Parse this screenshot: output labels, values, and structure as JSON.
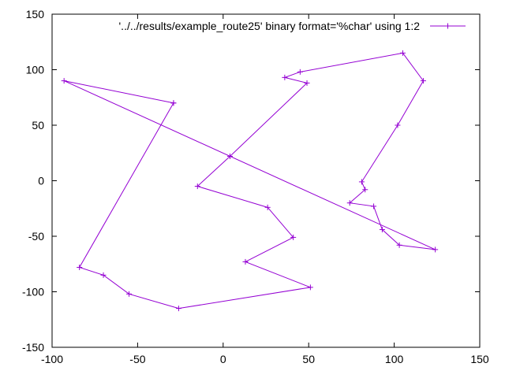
{
  "chart_data": {
    "type": "line",
    "title": "",
    "xlabel": "",
    "ylabel": "",
    "xlim": [
      -100,
      150
    ],
    "ylim": [
      -150,
      150
    ],
    "x_ticks": [
      -100,
      -50,
      0,
      50,
      100,
      150
    ],
    "y_ticks": [
      -150,
      -100,
      -50,
      0,
      50,
      100,
      150
    ],
    "grid": false,
    "legend_position": "top-right",
    "series": [
      {
        "name": "'../../results/example_route25' binary format='%char' using 1:2",
        "color": "#9400d3",
        "marker": "plus",
        "x": [
          -29,
          -84,
          -70,
          -55,
          -26,
          51,
          13,
          41,
          26,
          -15,
          4,
          49,
          36,
          45,
          105,
          117,
          102,
          81,
          83,
          74,
          88,
          93,
          103,
          124,
          -93,
          -29
        ],
        "y": [
          70,
          -78,
          -85,
          -102,
          -115,
          -96,
          -73,
          -51,
          -24,
          -5,
          22,
          88,
          93,
          98,
          115,
          90,
          50,
          -1,
          -8,
          -20,
          -23,
          -44,
          -58,
          -62,
          90,
          70
        ]
      }
    ]
  }
}
